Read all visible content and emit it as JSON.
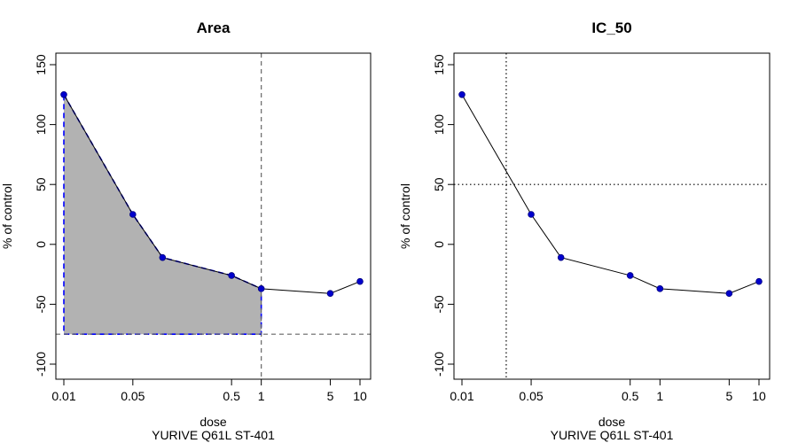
{
  "figure": {
    "subtitle": "YURIVE Q61L ST-401",
    "colors": {
      "point_fill": "#0000cd",
      "area_fill": "#b2b2b2",
      "area_border": "#0000ff",
      "reference_line": "#666666",
      "curve": "#000000"
    }
  },
  "chart_data": [
    {
      "type": "area",
      "title": "Area",
      "xlabel": "dose",
      "ylabel": "% of control",
      "x_scale": "log",
      "xlim": [
        0.01,
        10
      ],
      "ylim": [
        -100,
        150
      ],
      "grid": false,
      "x_ticks": [
        0.01,
        0.05,
        0.5,
        1,
        5,
        10
      ],
      "x_tick_labels": [
        "0.01",
        "0.05",
        "0.5",
        "1",
        "5",
        "10"
      ],
      "y_ticks": [
        -100,
        -50,
        0,
        50,
        100,
        150
      ],
      "y_tick_labels": [
        "-100",
        "-50",
        "0",
        "50",
        "100",
        "150"
      ],
      "x": [
        0.01,
        0.05,
        0.1,
        0.5,
        1,
        5,
        10
      ],
      "y": [
        125,
        25,
        -11,
        -26,
        -37,
        -41,
        -31
      ],
      "shaded_region": {
        "x_from": 0.01,
        "x_to": 1,
        "y_baseline": -75
      },
      "reference_lines": {
        "vertical_x": 1,
        "horizontal_y": -75
      }
    },
    {
      "type": "line",
      "title": "IC_50",
      "xlabel": "dose",
      "ylabel": "% of control",
      "x_scale": "log",
      "xlim": [
        0.01,
        10
      ],
      "ylim": [
        -100,
        150
      ],
      "grid": false,
      "x_ticks": [
        0.01,
        0.05,
        0.5,
        1,
        5,
        10
      ],
      "x_tick_labels": [
        "0.01",
        "0.05",
        "0.5",
        "1",
        "5",
        "10"
      ],
      "y_ticks": [
        -100,
        -50,
        0,
        50,
        100,
        150
      ],
      "y_tick_labels": [
        "-100",
        "-50",
        "0",
        "50",
        "100",
        "150"
      ],
      "x": [
        0.01,
        0.05,
        0.1,
        0.5,
        1,
        5,
        10
      ],
      "y": [
        125,
        25,
        -11,
        -26,
        -37,
        -41,
        -31
      ],
      "reference_lines": {
        "vertical_x": 0.028,
        "horizontal_y": 50
      }
    }
  ]
}
